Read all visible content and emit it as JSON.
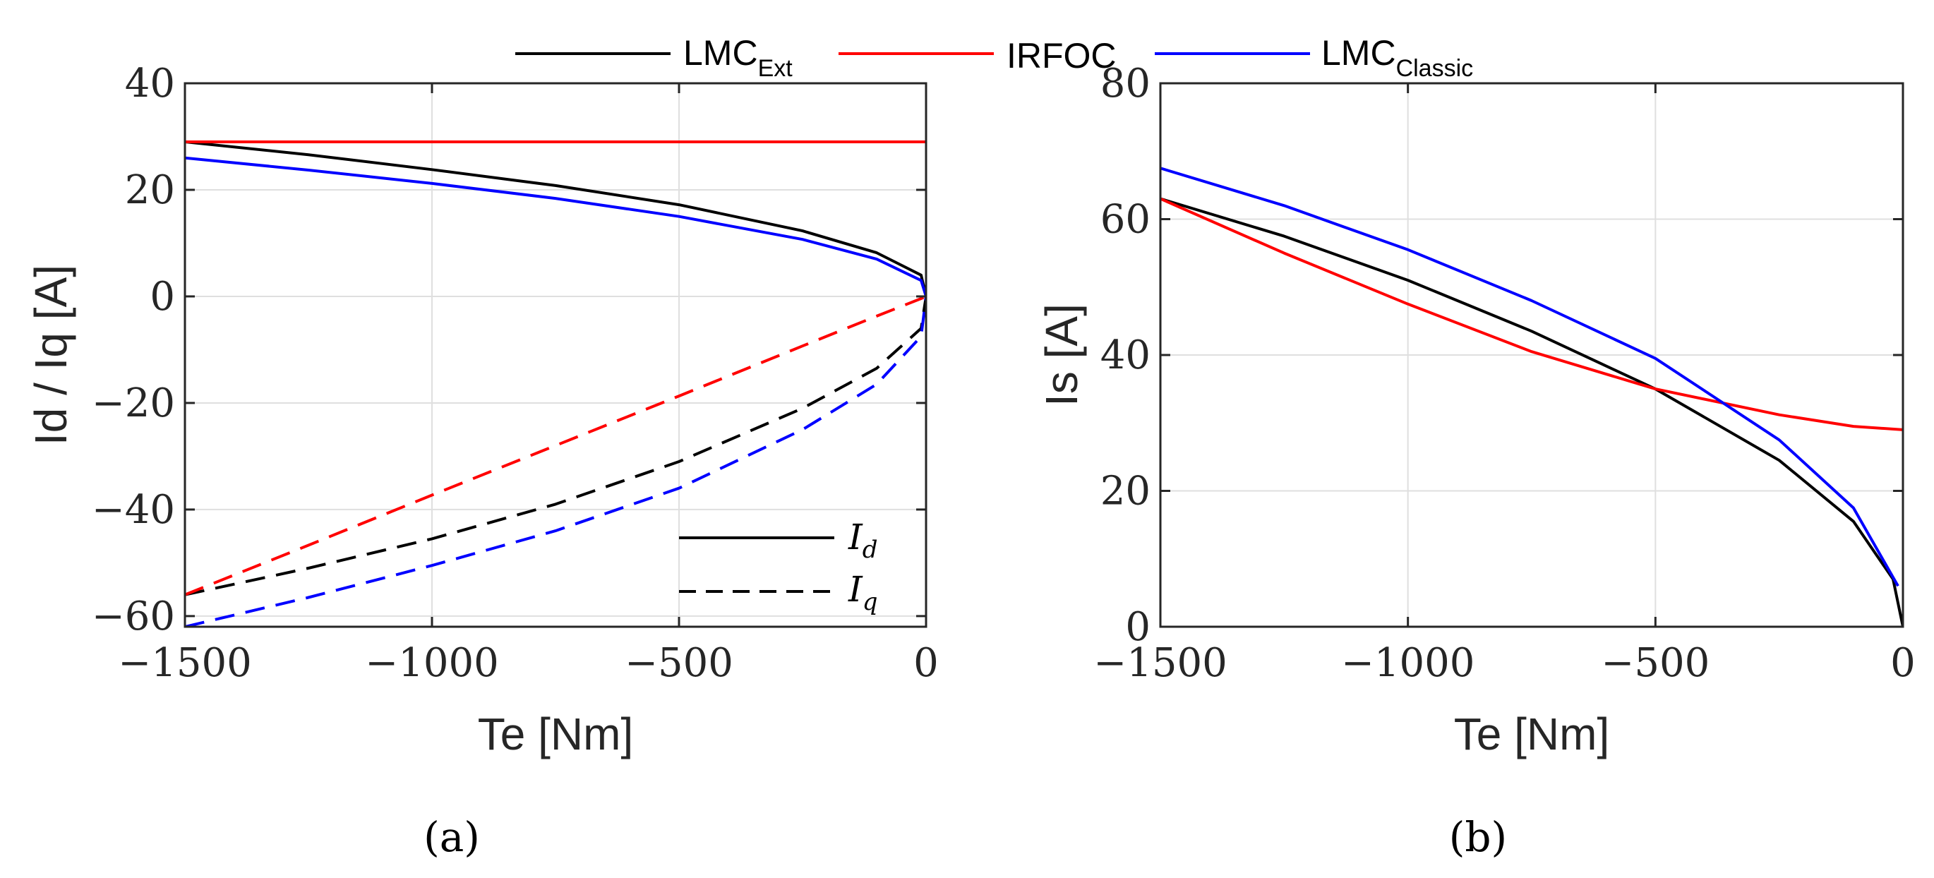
{
  "legend": {
    "entries": [
      {
        "base": "LMC",
        "sub": "Ext",
        "color": "#000000"
      },
      {
        "base": "IRFOC",
        "sub": "",
        "color": "#ff0000"
      },
      {
        "base": "LMC",
        "sub": "Classic",
        "color": "#0000ff"
      }
    ],
    "style_entries": [
      {
        "base": "I",
        "sub": "d",
        "dash": "solid"
      },
      {
        "base": "I",
        "sub": "q",
        "dash": "dashed"
      }
    ]
  },
  "chart_data": [
    {
      "type": "line",
      "caption": "(a)",
      "xlabel": "Te [Nm]",
      "ylabel": "Id / Iq [A]",
      "xlim": [
        -1500,
        0
      ],
      "ylim": [
        -62,
        40
      ],
      "xticks": [
        -1500,
        -1000,
        -500,
        0
      ],
      "xtick_labels": [
        "−1500",
        "−1000",
        "−500",
        "0"
      ],
      "yticks": [
        -60,
        -40,
        -20,
        0,
        20,
        40
      ],
      "ytick_labels": [
        "−60",
        "−40",
        "−20",
        "0",
        "20",
        "40"
      ],
      "grid": true,
      "x": [
        -1500,
        -1250,
        -1000,
        -750,
        -500,
        -250,
        -100,
        -10,
        0
      ],
      "series": [
        {
          "name": "LMC_Ext Id",
          "color": "#000000",
          "dash": "solid",
          "values": [
            29,
            26.6,
            23.8,
            20.8,
            17.2,
            12.3,
            8.2,
            4,
            0
          ]
        },
        {
          "name": "IRFOC Id",
          "color": "#ff0000",
          "dash": "solid",
          "values": [
            29,
            29,
            29,
            29,
            29,
            29,
            29,
            29,
            29
          ]
        },
        {
          "name": "LMC_Classic Id",
          "color": "#0000ff",
          "dash": "solid",
          "values": [
            26,
            23.7,
            21.2,
            18.4,
            15,
            10.7,
            7,
            3,
            0
          ]
        },
        {
          "name": "LMC_Ext Iq",
          "color": "#000000",
          "dash": "dashed",
          "values": [
            -56,
            -51,
            -45.5,
            -39,
            -31,
            -21,
            -13.5,
            -6,
            0
          ]
        },
        {
          "name": "IRFOC Iq",
          "color": "#ff0000",
          "dash": "dashed",
          "values": [
            -56,
            -46.7,
            -37.3,
            -28,
            -18.7,
            -9.3,
            -3.7,
            -0.4,
            0
          ]
        },
        {
          "name": "LMC_Classic Iq",
          "color": "#0000ff",
          "dash": "dashed",
          "values": [
            -62,
            -56.5,
            -50.5,
            -44,
            -36,
            -25,
            -16.5,
            -7.5,
            0
          ]
        }
      ]
    },
    {
      "type": "line",
      "caption": "(b)",
      "xlabel": "Te [Nm]",
      "ylabel": "Is [A]",
      "xlim": [
        -1500,
        0
      ],
      "ylim": [
        0,
        80
      ],
      "xticks": [
        -1500,
        -1000,
        -500,
        0
      ],
      "xtick_labels": [
        "−1500",
        "−1000",
        "−500",
        "0"
      ],
      "yticks": [
        0,
        20,
        40,
        60,
        80
      ],
      "ytick_labels": [
        "0",
        "20",
        "40",
        "60",
        "80"
      ],
      "grid": true,
      "series": [
        {
          "name": "LMC_Ext",
          "color": "#000000",
          "dash": "solid",
          "x": [
            -1500,
            -1250,
            -1000,
            -750,
            -500,
            -250,
            -100,
            -20,
            0
          ],
          "values": [
            63,
            57.5,
            51,
            43.5,
            35,
            24.5,
            15.5,
            7,
            0
          ]
        },
        {
          "name": "IRFOC",
          "color": "#ff0000",
          "dash": "solid",
          "x": [
            -1500,
            -1250,
            -1000,
            -750,
            -500,
            -250,
            -100,
            0
          ],
          "values": [
            63,
            55,
            47.5,
            40.5,
            35,
            31.2,
            29.5,
            29
          ]
        },
        {
          "name": "LMC_Classic",
          "color": "#0000ff",
          "dash": "solid",
          "x": [
            -1500,
            -1250,
            -1000,
            -750,
            -500,
            -250,
            -100,
            -10
          ],
          "values": [
            67.5,
            62,
            55.5,
            48,
            39.5,
            27.5,
            17.5,
            6
          ]
        }
      ]
    }
  ]
}
